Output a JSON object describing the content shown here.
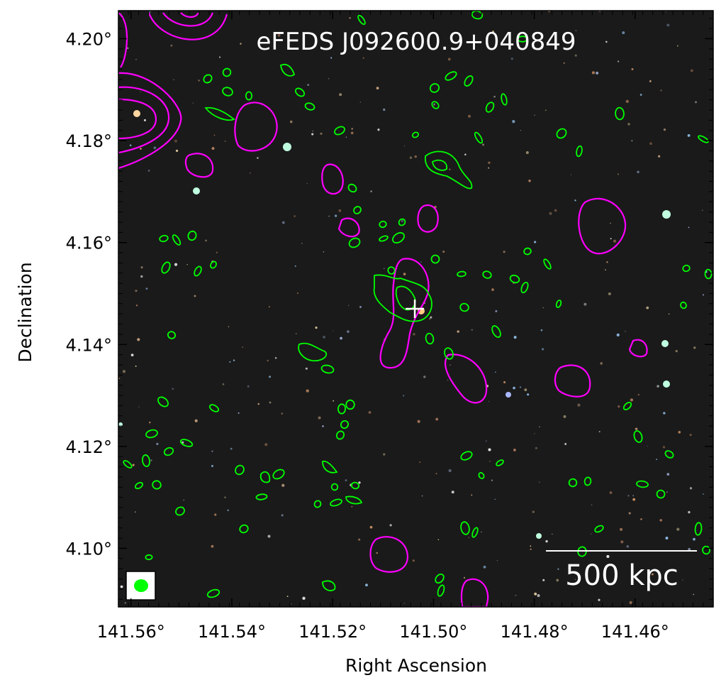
{
  "chart_data": {
    "type": "scatter",
    "title": "eFEDS J092600.9+040849",
    "xlabel": "Right Ascension",
    "ylabel": "Declination",
    "x_range": [
      141.5625,
      141.4445
    ],
    "y_range": [
      4.0885,
      4.2055
    ],
    "x_ticks": [
      141.56,
      141.54,
      141.52,
      141.5,
      141.48,
      141.46
    ],
    "x_tick_labels": [
      "141.56°",
      "141.54°",
      "141.52°",
      "141.50°",
      "141.48°",
      "141.46°"
    ],
    "y_ticks": [
      4.1,
      4.12,
      4.14,
      4.16,
      4.18,
      4.2
    ],
    "y_tick_labels": [
      "4.10°",
      "4.12°",
      "4.14°",
      "4.16°",
      "4.18°",
      "4.20°"
    ],
    "cluster_center": {
      "ra": 141.5037,
      "dec": 4.147
    },
    "scale_bar": {
      "label": "500 kpc"
    },
    "beam": {
      "color": "#00ff00"
    },
    "contours": {
      "radio_color": "#00ff00",
      "xray_color": "#ff00ff"
    },
    "background": "#1a1a1a"
  }
}
